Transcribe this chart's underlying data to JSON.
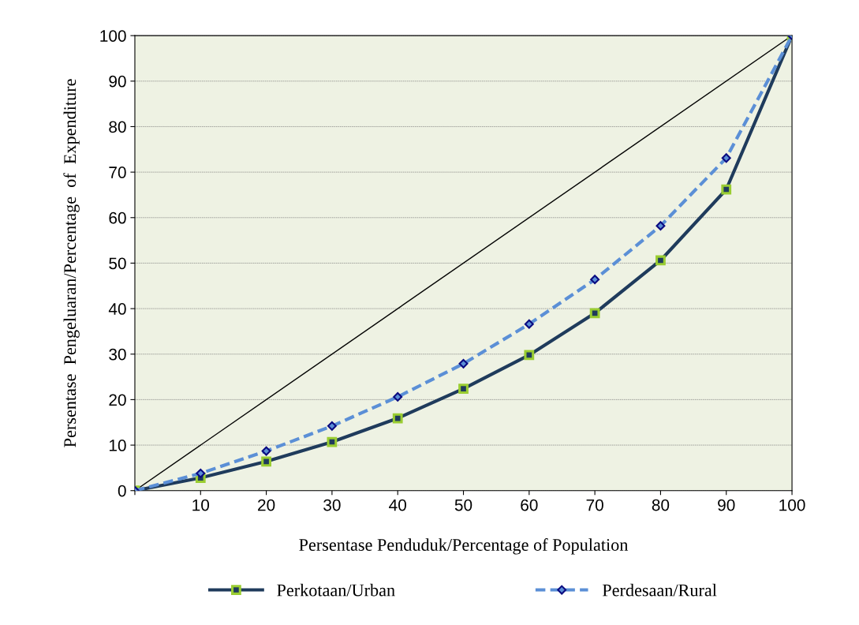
{
  "chart_data": {
    "type": "line",
    "xlabel": "Persentase Penduduk/Percentage of Population",
    "ylabel": "Persentase  Pengeluaran/Percentage  of  Expenditure",
    "x": [
      0,
      10,
      20,
      30,
      40,
      50,
      60,
      70,
      80,
      90,
      100
    ],
    "series": [
      {
        "name": "Perkotaan/Urban",
        "color": "#1f3b5c",
        "marker": "square",
        "line_style": "solid",
        "values": [
          0,
          2.8,
          6.4,
          10.7,
          15.9,
          22.4,
          29.8,
          39.0,
          50.6,
          66.2,
          100
        ]
      },
      {
        "name": "Perdesaan/Rural",
        "color": "#5b8fd6",
        "marker": "diamond",
        "line_style": "dashed",
        "values": [
          0,
          3.8,
          8.7,
          14.2,
          20.6,
          27.9,
          36.6,
          46.4,
          58.2,
          73.1,
          100
        ]
      },
      {
        "type": "line",
        "color": "#000000",
        "marker": "none",
        "line_style": "solid",
        "x": [
          0,
          100
        ],
        "values": [
          0,
          100
        ]
      }
    ],
    "xlim": [
      0,
      100
    ],
    "xticks": [
      {
        "value": 0,
        "label": null
      },
      10,
      20,
      30,
      40,
      50,
      60,
      70,
      80,
      90,
      100
    ],
    "ylim": [
      0,
      100
    ],
    "yticks": [
      0,
      10,
      20,
      30,
      40,
      50,
      60,
      70,
      80,
      90,
      100
    ],
    "grid": "y",
    "legend": "bottom"
  }
}
